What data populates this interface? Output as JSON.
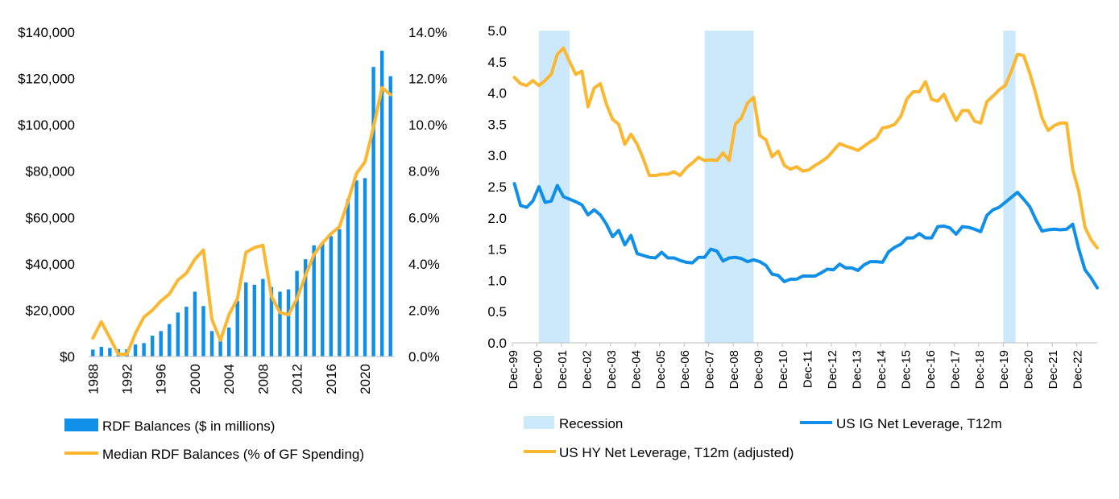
{
  "chart_data": [
    {
      "type": "bar+line",
      "title": "",
      "x": [
        1988,
        1989,
        1990,
        1991,
        1992,
        1993,
        1994,
        1995,
        1996,
        1997,
        1998,
        1999,
        2000,
        2001,
        2002,
        2003,
        2004,
        2005,
        2006,
        2007,
        2008,
        2009,
        2010,
        2011,
        2012,
        2013,
        2014,
        2015,
        2016,
        2017,
        2018,
        2019,
        2020,
        2021,
        2022,
        2023
      ],
      "x_tick_labels": [
        "1988",
        "1992",
        "1996",
        "2000",
        "2004",
        "2008",
        "2012",
        "2016",
        "2020"
      ],
      "y_left_ticks": [
        "$0",
        "$20,000",
        "$40,000",
        "$60,000",
        "$80,000",
        "$100,000",
        "$120,000",
        "$140,000"
      ],
      "y_right_ticks": [
        "0.0%",
        "2.0%",
        "4.0%",
        "6.0%",
        "8.0%",
        "10.0%",
        "12.0%",
        "14.0%"
      ],
      "y_left_lim": [
        0,
        140000
      ],
      "y_right_lim": [
        0,
        14
      ],
      "series": [
        {
          "name": "RDF Balances ($ in millions)",
          "kind": "bar",
          "axis": "left",
          "color": "#0f8fe8",
          "values": [
            3000,
            4200,
            3700,
            3200,
            3100,
            5200,
            5800,
            9000,
            11000,
            14000,
            19000,
            21500,
            28000,
            21800,
            11000,
            9000,
            12500,
            24000,
            32000,
            31000,
            33500,
            30000,
            28000,
            29000,
            37000,
            42000,
            48000,
            49000,
            52000,
            55000,
            68000,
            76000,
            77000,
            125000,
            132000,
            121000
          ]
        },
        {
          "name": "Median RDF Balances (% of GF Spending)",
          "kind": "line",
          "axis": "right",
          "color": "#fcb731",
          "values": [
            0.8,
            1.5,
            0.8,
            0.1,
            0.1,
            1.0,
            1.7,
            2.0,
            2.4,
            2.7,
            3.3,
            3.6,
            4.2,
            4.6,
            1.6,
            0.7,
            1.8,
            2.5,
            4.5,
            4.7,
            4.8,
            2.6,
            1.9,
            1.8,
            2.5,
            3.5,
            4.4,
            4.9,
            5.3,
            5.6,
            6.7,
            7.9,
            8.4,
            9.9,
            11.6,
            11.3
          ]
        }
      ],
      "legend_position": "bottom-left",
      "grid": false
    },
    {
      "type": "line",
      "title": "",
      "x_tick_labels": [
        "Dec-99",
        "Dec-00",
        "Dec-01",
        "Dec-02",
        "Dec-03",
        "Dec-04",
        "Dec-05",
        "Dec-06",
        "Dec-07",
        "Dec-08",
        "Dec-09",
        "Dec-10",
        "Dec-11",
        "Dec-12",
        "Dec-13",
        "Dec-14",
        "Dec-15",
        "Dec-16",
        "Dec-17",
        "Dec-18",
        "Dec-19",
        "Dec-20",
        "Dec-21",
        "Dec-22"
      ],
      "x_lim": [
        1999.917,
        2023.75
      ],
      "y_ticks": [
        "0.0",
        "0.5",
        "1.0",
        "1.5",
        "2.0",
        "2.5",
        "3.0",
        "3.5",
        "4.0",
        "4.5",
        "5.0"
      ],
      "ylim": [
        0,
        5
      ],
      "recessions": [
        {
          "name": "Recession",
          "start": 2001.0,
          "end": 2002.25,
          "color": "#cce8fb"
        },
        {
          "start": 2007.75,
          "end": 2009.75
        },
        {
          "start": 2019.92,
          "end": 2020.42
        }
      ],
      "series": [
        {
          "name": "US HY Net Leverage, T12m (adjusted)",
          "color": "#fcb731",
          "x": [
            2000.0,
            2000.25,
            2000.5,
            2000.75,
            2001.0,
            2001.25,
            2001.5,
            2001.75,
            2002.0,
            2002.25,
            2002.5,
            2002.75,
            2003.0,
            2003.25,
            2003.5,
            2003.75,
            2004.0,
            2004.25,
            2004.5,
            2004.75,
            2005.0,
            2005.25,
            2005.5,
            2005.75,
            2006.0,
            2006.25,
            2006.5,
            2006.75,
            2007.0,
            2007.25,
            2007.5,
            2007.75,
            2008.0,
            2008.25,
            2008.5,
            2008.75,
            2009.0,
            2009.25,
            2009.5,
            2009.75,
            2010.0,
            2010.25,
            2010.5,
            2010.75,
            2011.0,
            2011.25,
            2011.5,
            2011.75,
            2012.0,
            2012.25,
            2012.5,
            2012.75,
            2013.0,
            2013.25,
            2013.5,
            2013.75,
            2014.0,
            2014.25,
            2014.5,
            2014.75,
            2015.0,
            2015.25,
            2015.5,
            2015.75,
            2016.0,
            2016.25,
            2016.5,
            2016.75,
            2017.0,
            2017.25,
            2017.5,
            2017.75,
            2018.0,
            2018.25,
            2018.5,
            2018.75,
            2019.0,
            2019.25,
            2019.5,
            2019.75,
            2020.0,
            2020.25,
            2020.5,
            2020.75,
            2021.0,
            2021.25,
            2021.5,
            2021.75,
            2022.0,
            2022.25,
            2022.5,
            2022.75,
            2023.0,
            2023.25,
            2023.5,
            2023.75
          ],
          "values": [
            4.25,
            4.15,
            4.12,
            4.2,
            4.12,
            4.2,
            4.3,
            4.62,
            4.72,
            4.5,
            4.3,
            4.35,
            3.78,
            4.08,
            4.15,
            3.82,
            3.58,
            3.5,
            3.18,
            3.34,
            3.18,
            2.95,
            2.68,
            2.68,
            2.7,
            2.7,
            2.74,
            2.68,
            2.8,
            2.88,
            2.97,
            2.92,
            2.93,
            2.92,
            3.04,
            2.92,
            3.5,
            3.6,
            3.84,
            3.93,
            3.32,
            3.25,
            2.98,
            3.07,
            2.84,
            2.78,
            2.82,
            2.75,
            2.77,
            2.84,
            2.9,
            2.97,
            3.08,
            3.19,
            3.15,
            3.12,
            3.08,
            3.15,
            3.22,
            3.28,
            3.44,
            3.46,
            3.5,
            3.63,
            3.91,
            4.02,
            4.02,
            4.18,
            3.9,
            3.87,
            3.98,
            3.76,
            3.56,
            3.72,
            3.72,
            3.55,
            3.52,
            3.86,
            3.95,
            4.05,
            4.12,
            4.35,
            4.62,
            4.6,
            4.32,
            3.98,
            3.6,
            3.4,
            3.48,
            3.52,
            3.52,
            2.78,
            2.42,
            1.85,
            1.65,
            1.52
          ]
        },
        {
          "name": "US IG Net Leverage, T12m",
          "color": "#0f8fe8",
          "x": [
            2000.0,
            2000.25,
            2000.5,
            2000.75,
            2001.0,
            2001.25,
            2001.5,
            2001.75,
            2002.0,
            2002.25,
            2002.5,
            2002.75,
            2003.0,
            2003.25,
            2003.5,
            2003.75,
            2004.0,
            2004.25,
            2004.5,
            2004.75,
            2005.0,
            2005.25,
            2005.5,
            2005.75,
            2006.0,
            2006.25,
            2006.5,
            2006.75,
            2007.0,
            2007.25,
            2007.5,
            2007.75,
            2008.0,
            2008.25,
            2008.5,
            2008.75,
            2009.0,
            2009.25,
            2009.5,
            2009.75,
            2010.0,
            2010.25,
            2010.5,
            2010.75,
            2011.0,
            2011.25,
            2011.5,
            2011.75,
            2012.0,
            2012.25,
            2012.5,
            2012.75,
            2013.0,
            2013.25,
            2013.5,
            2013.75,
            2014.0,
            2014.25,
            2014.5,
            2014.75,
            2015.0,
            2015.25,
            2015.5,
            2015.75,
            2016.0,
            2016.25,
            2016.5,
            2016.75,
            2017.0,
            2017.25,
            2017.5,
            2017.75,
            2018.0,
            2018.25,
            2018.5,
            2018.75,
            2019.0,
            2019.25,
            2019.5,
            2019.75,
            2020.0,
            2020.25,
            2020.5,
            2020.75,
            2021.0,
            2021.25,
            2021.5,
            2021.75,
            2022.0,
            2022.25,
            2022.5,
            2022.75,
            2023.0,
            2023.25,
            2023.5,
            2023.75
          ],
          "values": [
            2.55,
            2.2,
            2.17,
            2.27,
            2.5,
            2.25,
            2.27,
            2.52,
            2.34,
            2.3,
            2.26,
            2.21,
            2.05,
            2.13,
            2.05,
            1.9,
            1.7,
            1.8,
            1.57,
            1.72,
            1.43,
            1.4,
            1.37,
            1.36,
            1.45,
            1.36,
            1.36,
            1.32,
            1.29,
            1.28,
            1.37,
            1.37,
            1.5,
            1.47,
            1.31,
            1.36,
            1.37,
            1.35,
            1.3,
            1.33,
            1.3,
            1.24,
            1.1,
            1.08,
            0.98,
            1.02,
            1.02,
            1.07,
            1.07,
            1.07,
            1.12,
            1.18,
            1.17,
            1.26,
            1.2,
            1.2,
            1.16,
            1.25,
            1.3,
            1.3,
            1.29,
            1.46,
            1.53,
            1.58,
            1.68,
            1.68,
            1.75,
            1.68,
            1.68,
            1.86,
            1.87,
            1.84,
            1.74,
            1.86,
            1.85,
            1.82,
            1.78,
            2.04,
            2.13,
            2.17,
            2.25,
            2.33,
            2.41,
            2.3,
            2.18,
            1.97,
            1.79,
            1.81,
            1.82,
            1.81,
            1.82,
            1.9,
            1.5,
            1.17,
            1.04,
            0.88
          ]
        }
      ],
      "legend_position": "bottom",
      "grid": false
    }
  ]
}
